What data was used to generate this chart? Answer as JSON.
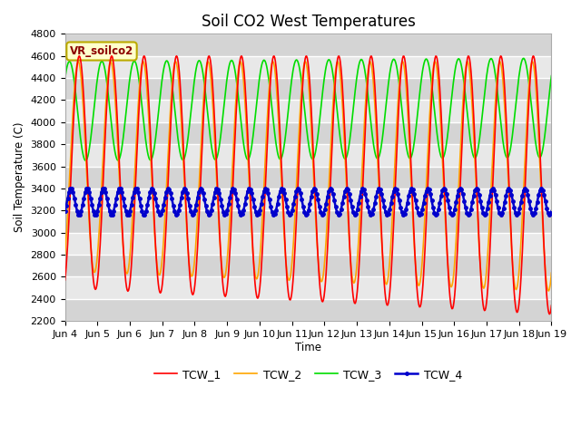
{
  "title": "Soil CO2 West Temperatures",
  "ylabel": "Soil Temperature (C)",
  "xlabel": "Time",
  "annotation": "VR_soilco2",
  "ylim": [
    2200,
    4800
  ],
  "fig_bg": "#ffffff",
  "plot_bg": "#e8e8e8",
  "grid_color": "#ffffff",
  "series": {
    "TCW_1": {
      "color": "#ff0000",
      "lw": 1.2
    },
    "TCW_2": {
      "color": "#ffa500",
      "lw": 1.2
    },
    "TCW_3": {
      "color": "#00dd00",
      "lw": 1.2
    },
    "TCW_4": {
      "color": "#0000cc",
      "lw": 1.8,
      "marker": "o",
      "markersize": 2.5
    }
  },
  "xtick_labels": [
    "Jun 4",
    "Jun 5",
    "Jun 6",
    "Jun 7",
    "Jun 8",
    "Jun 9",
    "Jun 10",
    "Jun 11",
    "Jun 12",
    "Jun 13",
    "Jun 14",
    "Jun 15",
    "Jun 16",
    "Jun 17",
    "Jun 18",
    "Jun 19"
  ],
  "n_days": 15,
  "ppd": 48,
  "TCW_1": {
    "base": 3550,
    "amp": 1050,
    "phase": -1.2,
    "trend": -8,
    "trend_amp": 8,
    "period": 1.0
  },
  "TCW_2": {
    "base": 3600,
    "amp": 950,
    "phase": -1.0,
    "trend": -6,
    "trend_amp": 6,
    "period": 1.0
  },
  "TCW_3": {
    "base": 4100,
    "amp": 450,
    "phase": 0.7,
    "trend": 2,
    "trend_amp": 0,
    "period": 1.0
  },
  "TCW_4": {
    "base": 3280,
    "amp": 120,
    "phase": -0.8,
    "trend": 0,
    "trend_amp": 0,
    "period": 0.5
  }
}
